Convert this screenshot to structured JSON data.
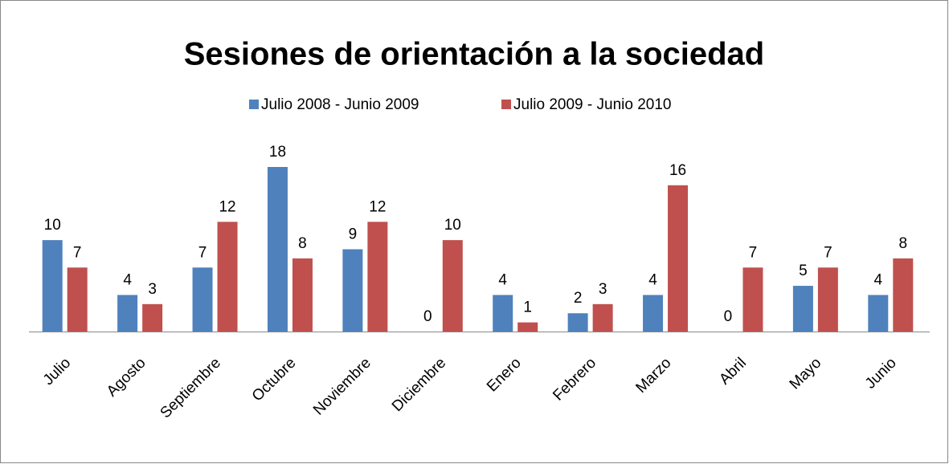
{
  "chart_data": {
    "type": "bar",
    "title": "Sesiones de orientación a la sociedad",
    "categories": [
      "Julio",
      "Agosto",
      "Septiembre",
      "Octubre",
      "Noviembre",
      "Diciembre",
      "Enero",
      "Febrero",
      "Marzo",
      "Abril",
      "Mayo",
      "Junio"
    ],
    "series": [
      {
        "name": "Julio 2008 - Junio 2009",
        "color": "#4f81bd",
        "values": [
          10,
          4,
          7,
          18,
          9,
          0,
          4,
          2,
          4,
          0,
          5,
          4
        ]
      },
      {
        "name": "Julio 2009 - Junio 2010",
        "color": "#c0504d",
        "values": [
          7,
          3,
          12,
          8,
          12,
          10,
          1,
          3,
          16,
          7,
          7,
          8
        ]
      }
    ],
    "legend": "top"
  }
}
